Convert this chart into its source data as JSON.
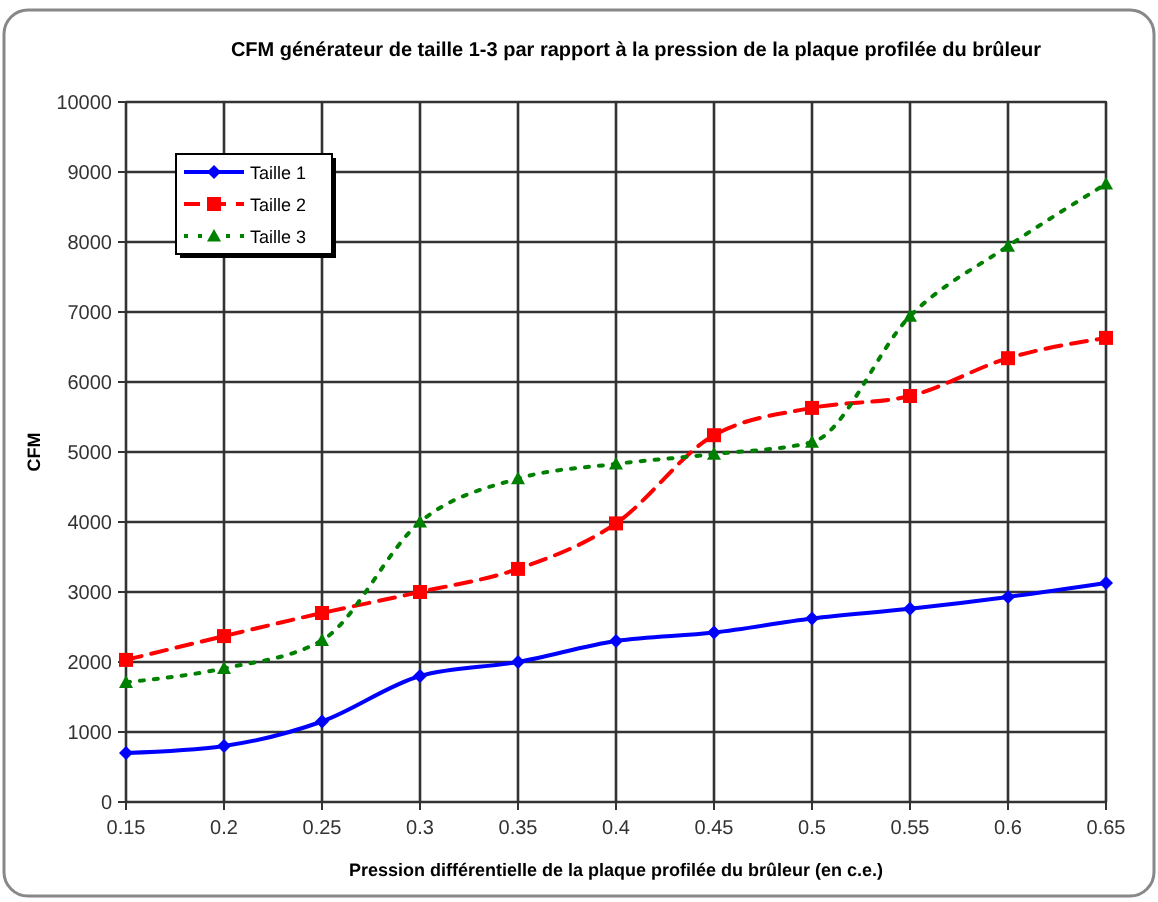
{
  "chart_data": {
    "type": "line",
    "title": "CFM générateur de taille 1-3 par rapport à la pression de la plaque profilée du brûleur",
    "xlabel": "Pression différentielle de la plaque profilée du brûleur (en c.e.)",
    "ylabel": "CFM",
    "x": [
      0.15,
      0.2,
      0.25,
      0.3,
      0.35,
      0.4,
      0.45,
      0.5,
      0.55,
      0.6,
      0.65
    ],
    "xlim": [
      0.15,
      0.65
    ],
    "xticks": [
      0.15,
      0.2,
      0.25,
      0.3,
      0.35,
      0.4,
      0.45,
      0.5,
      0.55,
      0.6,
      0.65
    ],
    "ylim": [
      0,
      10000
    ],
    "yticks": [
      0,
      1000,
      2000,
      3000,
      4000,
      5000,
      6000,
      7000,
      8000,
      9000,
      10000
    ],
    "grid": true,
    "legend": "top left",
    "series": [
      {
        "name": "Taille 1",
        "color": "#0000ff",
        "marker": "diamond",
        "line_style": "solid",
        "values": [
          700,
          800,
          1150,
          1800,
          2000,
          2300,
          2420,
          2620,
          2760,
          2930,
          3130
        ]
      },
      {
        "name": "Taille 2",
        "color": "#ff0000",
        "marker": "square",
        "line_style": "dashed",
        "values": [
          2030,
          2370,
          2700,
          3000,
          3330,
          3980,
          5240,
          5630,
          5800,
          6340,
          6630
        ]
      },
      {
        "name": "Taille 3",
        "color": "#008000",
        "marker": "triangle",
        "line_style": "dotted",
        "values": [
          1710,
          1910,
          2310,
          4000,
          4620,
          4830,
          4970,
          5140,
          6940,
          7940,
          8830
        ]
      }
    ]
  }
}
